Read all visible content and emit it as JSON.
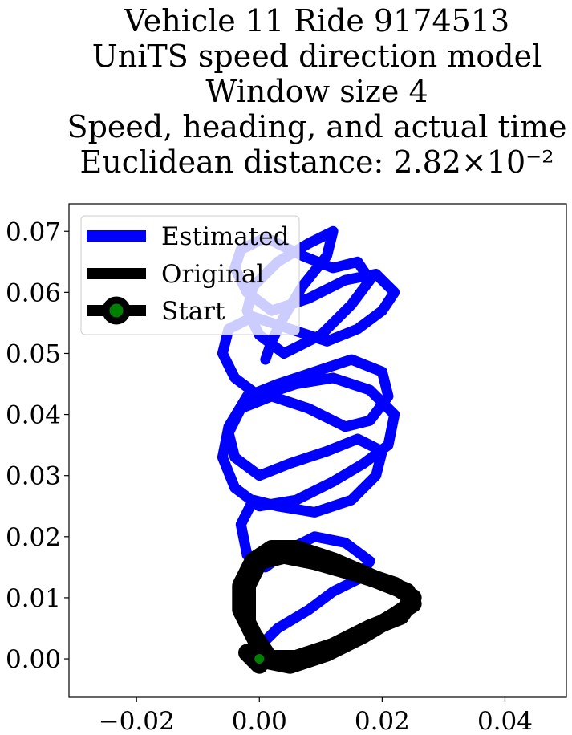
{
  "title_lines": [
    "Vehicle 11 Ride 9174513",
    "UniTS speed direction model",
    "Window size 4",
    "Speed, heading, and actual time",
    "Euclidean distance: 2.82×10⁻²"
  ],
  "chart_data": {
    "type": "line",
    "title": "Vehicle 11 Ride 9174513 / UniTS speed direction model / Window size 4 / Speed, heading, and actual time / Euclidean distance: 2.82×10⁻²",
    "xlabel": "",
    "ylabel": "",
    "xlim": [
      -0.031,
      0.05
    ],
    "ylim": [
      -0.0063,
      0.0745
    ],
    "x_ticks": [
      -0.02,
      0.0,
      0.02,
      0.04
    ],
    "x_tick_labels": [
      "−0.02",
      "0.00",
      "0.02",
      "0.04"
    ],
    "y_ticks": [
      0.0,
      0.01,
      0.02,
      0.03,
      0.04,
      0.05,
      0.06,
      0.07
    ],
    "y_tick_labels": [
      "0.00",
      "0.01",
      "0.02",
      "0.03",
      "0.04",
      "0.05",
      "0.06",
      "0.07"
    ],
    "grid": false,
    "legend_position": "top-left",
    "series": [
      {
        "name": "Estimated",
        "color": "#0000ff",
        "x": [
          0.0,
          0.003,
          0.008,
          0.012,
          0.016,
          0.018,
          0.014,
          0.009,
          0.005,
          0.001,
          -0.002,
          -0.003,
          -0.001,
          0.003,
          0.009,
          0.015,
          0.019,
          0.02,
          0.016,
          0.011,
          0.005,
          0.0,
          -0.004,
          -0.005,
          -0.003,
          0.002,
          0.008,
          0.014,
          0.018,
          0.021,
          0.02,
          0.015,
          0.009,
          0.003,
          -0.002,
          -0.005,
          -0.006,
          -0.004,
          0.0,
          0.006,
          0.012,
          0.017,
          0.021,
          0.022,
          0.018,
          0.012,
          0.006,
          0.0,
          -0.004,
          -0.006,
          -0.005,
          -0.001,
          0.005,
          0.011,
          0.016,
          0.02,
          0.022,
          0.019,
          0.014,
          0.008,
          0.002,
          -0.002,
          -0.004,
          -0.003,
          0.001,
          0.007,
          0.012,
          0.016,
          0.018,
          0.015,
          0.01,
          0.004,
          0.0,
          -0.002,
          -0.001,
          0.003,
          0.008,
          0.012,
          0.011,
          0.007,
          0.004,
          0.002,
          0.001
        ],
        "y": [
          0.002,
          0.005,
          0.008,
          0.011,
          0.013,
          0.016,
          0.019,
          0.02,
          0.018,
          0.015,
          0.017,
          0.022,
          0.026,
          0.025,
          0.024,
          0.026,
          0.03,
          0.034,
          0.036,
          0.034,
          0.032,
          0.03,
          0.033,
          0.037,
          0.041,
          0.043,
          0.041,
          0.038,
          0.039,
          0.043,
          0.047,
          0.049,
          0.047,
          0.045,
          0.043,
          0.038,
          0.033,
          0.028,
          0.025,
          0.026,
          0.029,
          0.032,
          0.035,
          0.04,
          0.044,
          0.046,
          0.045,
          0.043,
          0.046,
          0.05,
          0.054,
          0.056,
          0.054,
          0.052,
          0.054,
          0.057,
          0.06,
          0.063,
          0.062,
          0.059,
          0.057,
          0.06,
          0.064,
          0.067,
          0.069,
          0.066,
          0.064,
          0.065,
          0.062,
          0.058,
          0.053,
          0.05,
          0.053,
          0.057,
          0.061,
          0.065,
          0.068,
          0.07,
          0.066,
          0.061,
          0.056,
          0.052,
          0.049
        ]
      },
      {
        "name": "Original",
        "color": "#000000",
        "x": [
          0.0,
          0.005,
          0.011,
          0.017,
          0.022,
          0.025,
          0.024,
          0.019,
          0.012,
          0.006,
          0.002,
          -0.001,
          -0.003,
          -0.003,
          -0.001,
          0.001,
          0.0,
          -0.002,
          0.001,
          0.006,
          0.012,
          0.018,
          0.023,
          0.025,
          0.022,
          0.016,
          0.009,
          0.004,
          0.0,
          -0.002,
          -0.002,
          0.0
        ],
        "y": [
          0.0,
          -0.001,
          0.001,
          0.004,
          0.007,
          0.009,
          0.011,
          0.013,
          0.016,
          0.018,
          0.018,
          0.016,
          0.012,
          0.008,
          0.004,
          0.001,
          -0.001,
          0.001,
          0.0,
          0.0,
          0.002,
          0.005,
          0.007,
          0.01,
          0.012,
          0.014,
          0.016,
          0.017,
          0.016,
          0.012,
          0.006,
          0.002
        ]
      }
    ],
    "start_marker": {
      "name": "Start",
      "x": 0.0,
      "y": 0.0,
      "color": "#008000"
    }
  }
}
